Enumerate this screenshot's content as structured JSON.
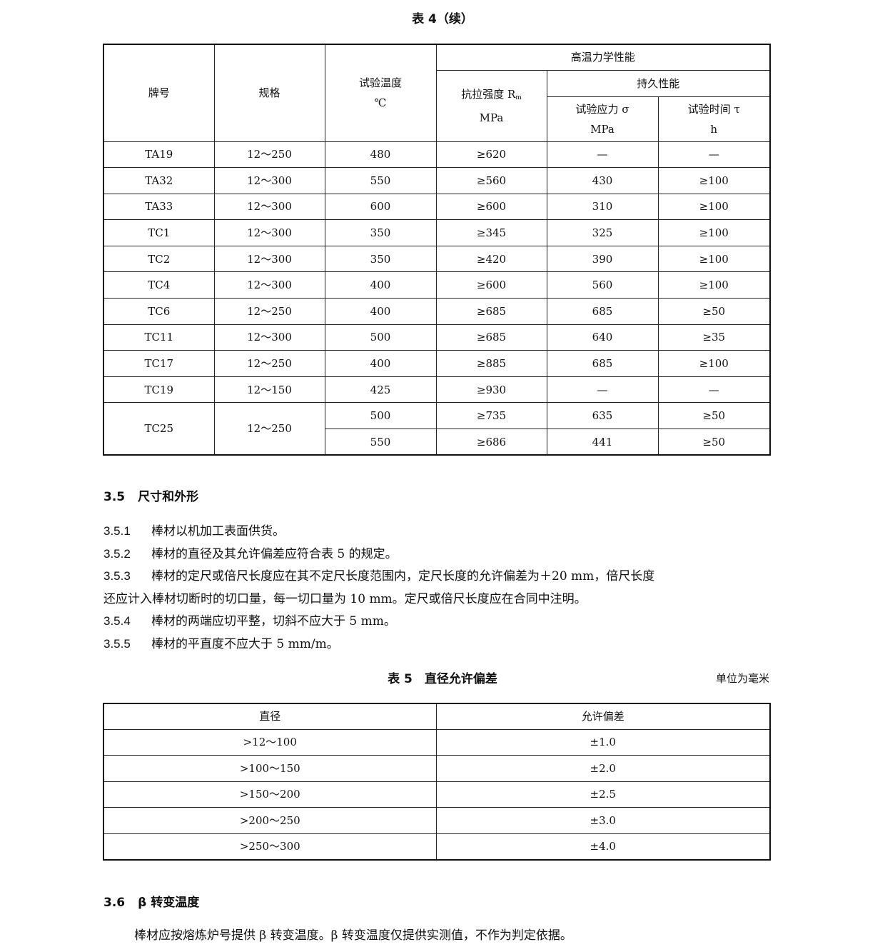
{
  "table4": {
    "caption": "表 4（续）",
    "headers": {
      "grade": "牌号",
      "spec": "规格",
      "temp": "试验温度",
      "temp_unit": "℃",
      "group": "高温力学性能",
      "tensile": "抗拉强度 R",
      "tensile_sub": "m",
      "tensile_unit": "MPa",
      "endurance": "持久性能",
      "stress": "试验应力 σ",
      "stress_unit": "MPa",
      "time": "试验时间 τ",
      "time_unit": "h"
    },
    "rows": [
      [
        "TA19",
        "12～250",
        "480",
        "≥620",
        "—",
        "—"
      ],
      [
        "TA32",
        "12～300",
        "550",
        "≥560",
        "430",
        "≥100"
      ],
      [
        "TA33",
        "12～300",
        "600",
        "≥600",
        "310",
        "≥100"
      ],
      [
        "TC1",
        "12～300",
        "350",
        "≥345",
        "325",
        "≥100"
      ],
      [
        "TC2",
        "12～300",
        "350",
        "≥420",
        "390",
        "≥100"
      ],
      [
        "TC4",
        "12～300",
        "400",
        "≥600",
        "560",
        "≥100"
      ],
      [
        "TC6",
        "12～250",
        "400",
        "≥685",
        "685",
        "≥50"
      ],
      [
        "TC11",
        "12～300",
        "500",
        "≥685",
        "640",
        "≥35"
      ],
      [
        "TC17",
        "12～250",
        "400",
        "≥885",
        "685",
        "≥100"
      ],
      [
        "TC19",
        "12～150",
        "425",
        "≥930",
        "—",
        "—"
      ]
    ],
    "tc25": {
      "grade": "TC25",
      "spec": "12～250",
      "rows": [
        [
          "500",
          "≥735",
          "635",
          "≥50"
        ],
        [
          "550",
          "≥686",
          "441",
          "≥50"
        ]
      ]
    }
  },
  "section35": {
    "num": "3.5",
    "title": "尺寸和外形",
    "items": [
      {
        "num": "3.5.1",
        "text": "棒材以机加工表面供货。"
      },
      {
        "num": "3.5.2",
        "text": "棒材的直径及其允许偏差应符合表 5 的规定。"
      },
      {
        "num": "3.5.3",
        "text": "棒材的定尺或倍尺长度应在其不定尺长度范围内，定尺长度的允许偏差为＋20 mm，倍尺长度",
        "cont": "还应计入棒材切断时的切口量，每一切口量为 10 mm。定尺或倍尺长度应在合同中注明。"
      },
      {
        "num": "3.5.4",
        "text": "棒材的两端应切平整，切斜不应大于 5 mm。"
      },
      {
        "num": "3.5.5",
        "text": "棒材的平直度不应大于 5 mm/m。"
      }
    ]
  },
  "table5": {
    "caption": "表 5　直径允许偏差",
    "unit": "单位为毫米",
    "headers": [
      "直径",
      "允许偏差"
    ],
    "rows": [
      [
        ">12～100",
        "±1.0"
      ],
      [
        ">100～150",
        "±2.0"
      ],
      [
        ">150～200",
        "±2.5"
      ],
      [
        ">200～250",
        "±3.0"
      ],
      [
        ">250～300",
        "±4.0"
      ]
    ]
  },
  "section36": {
    "num": "3.6",
    "title": "β 转变温度",
    "text": "棒材应按熔炼炉号提供 β 转变温度。β 转变温度仅提供实测值，不作为判定依据。"
  }
}
